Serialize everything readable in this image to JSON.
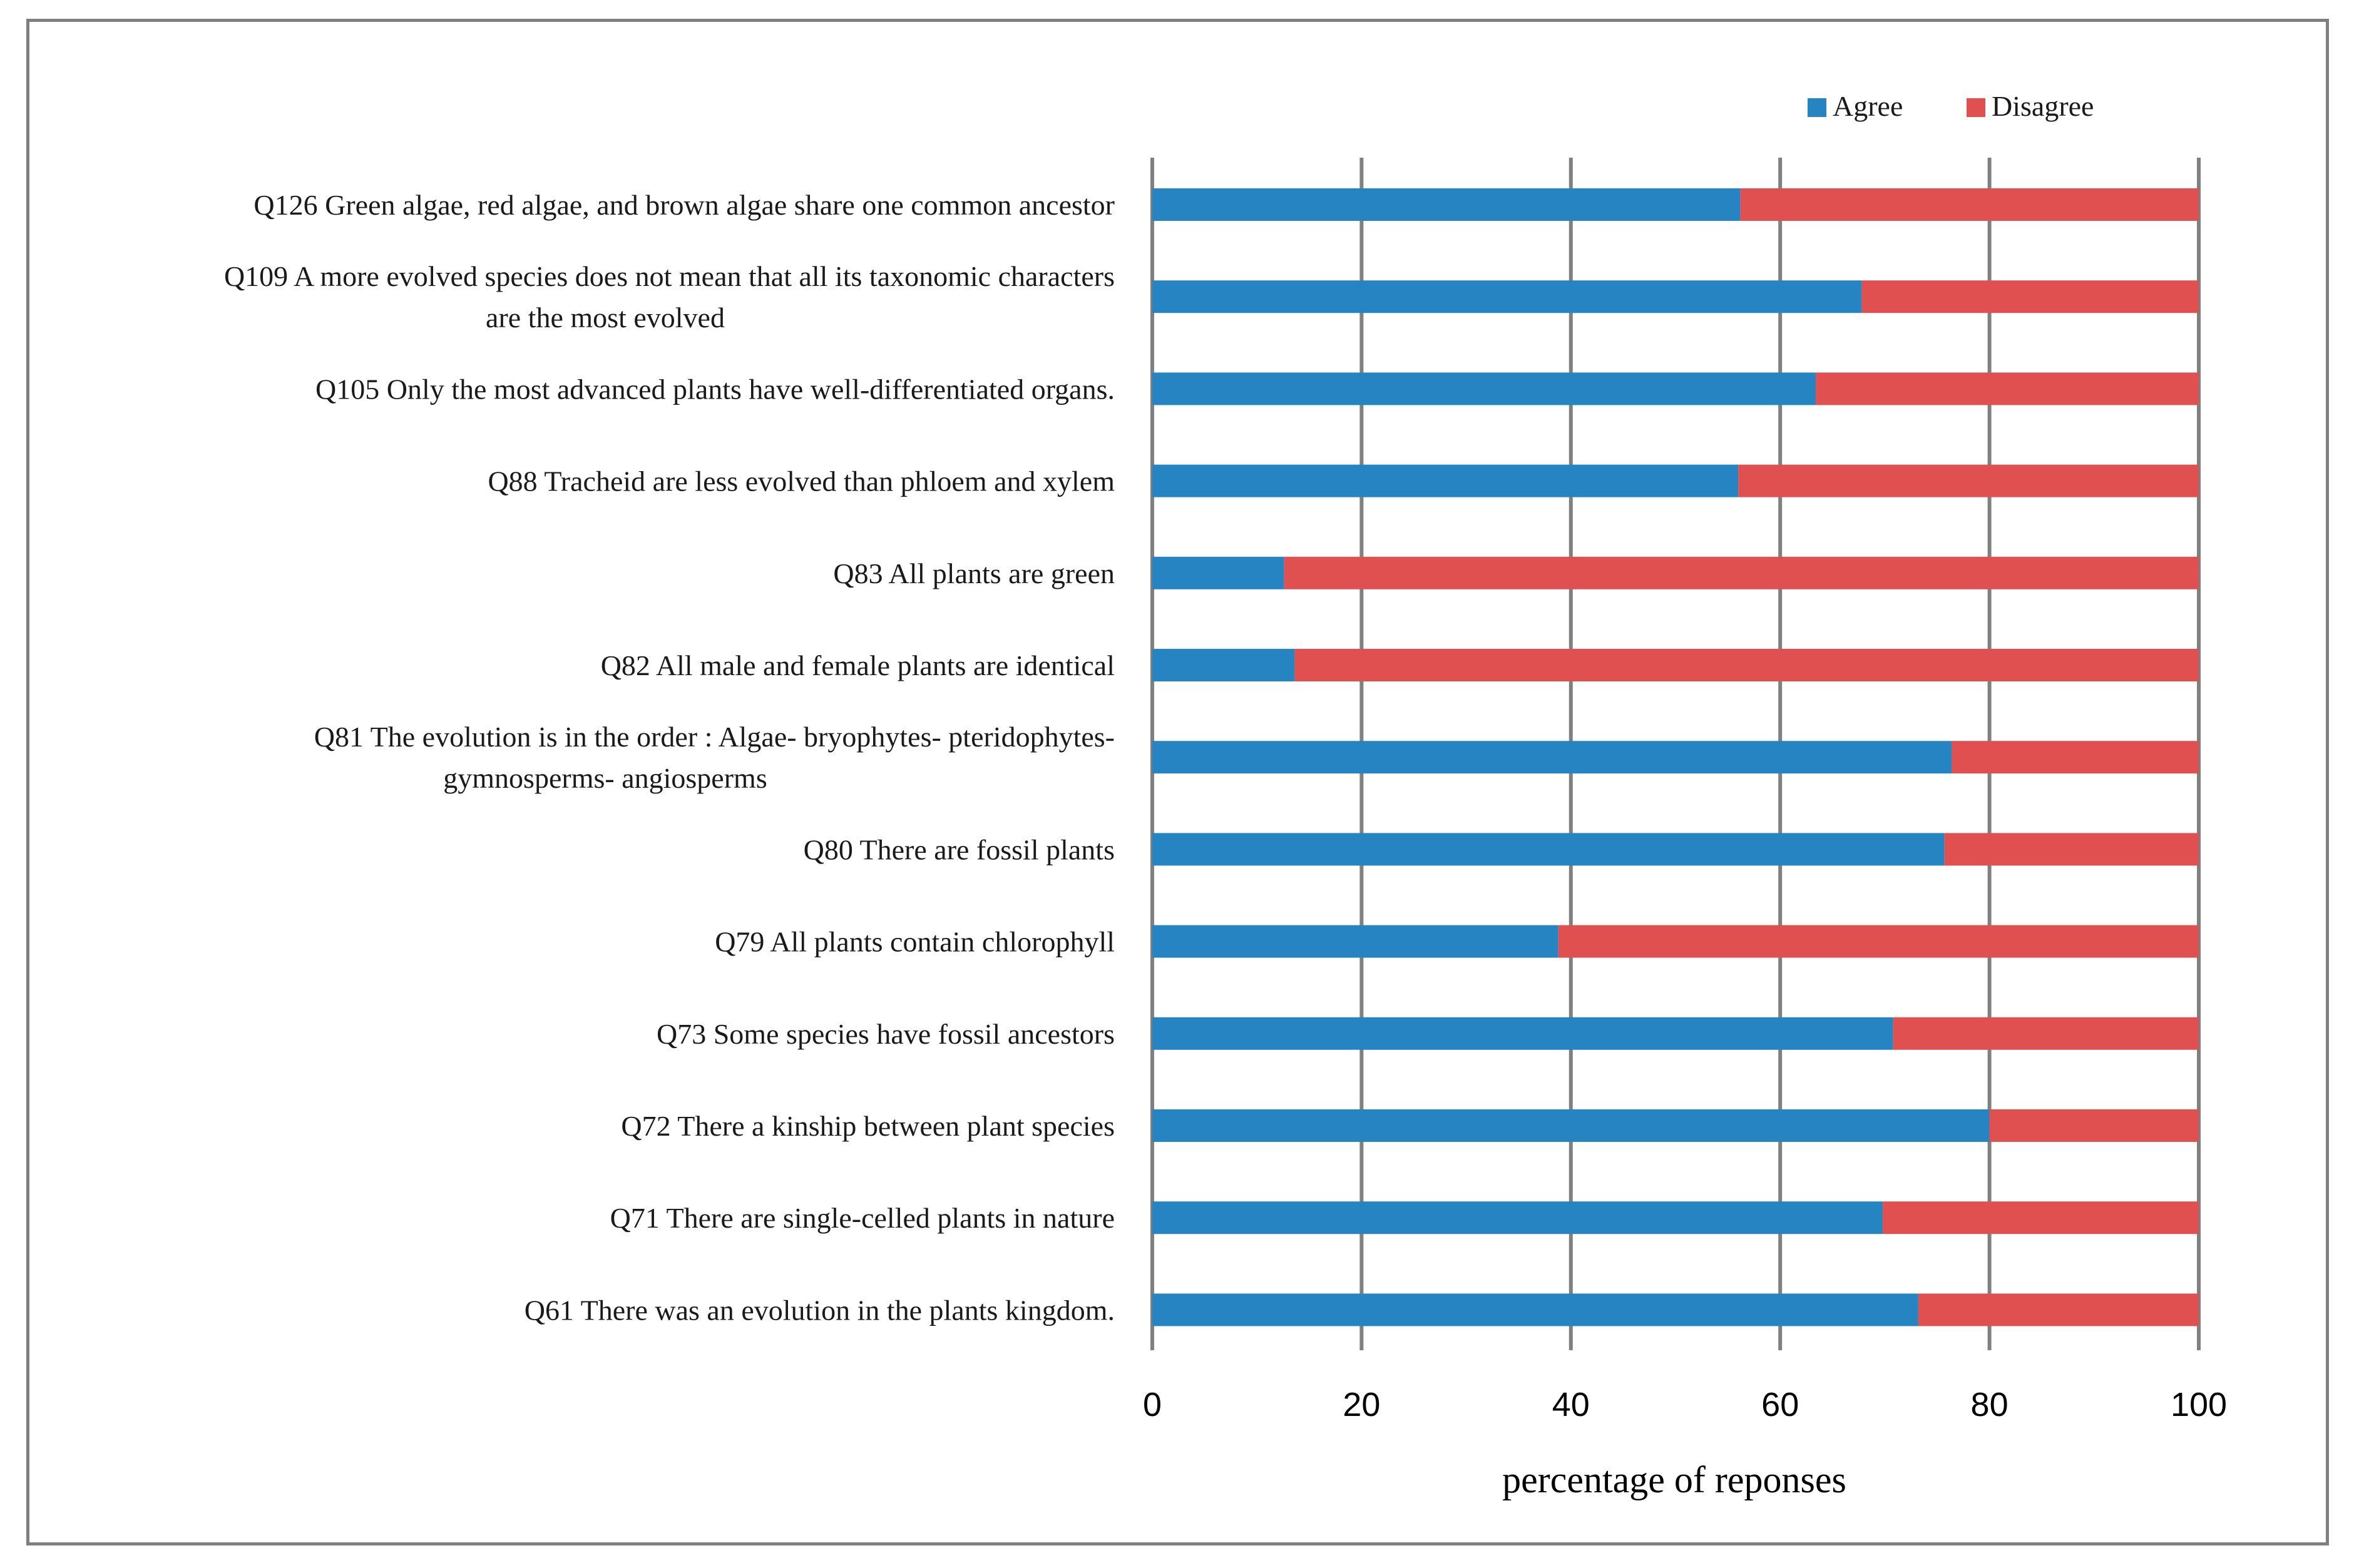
{
  "chart_data": {
    "type": "bar",
    "orientation": "horizontal",
    "stacked": true,
    "title": "",
    "xlabel": "percentage of reponses",
    "ylabel": "",
    "xlim": [
      0,
      100
    ],
    "x_ticks": [
      0,
      20,
      40,
      60,
      80,
      100
    ],
    "grid": "vertical",
    "legend_position": "top-right",
    "categories": [
      [
        "Q126 Green algae, red algae, and brown algae share one common ancestor"
      ],
      [
        "Q109 A more evolved species does not mean that all its taxonomic characters",
        "are the most evolved"
      ],
      [
        "Q105 Only the most advanced plants have well-differentiated organs."
      ],
      [
        "Q88 Tracheid are less evolved than phloem and xylem"
      ],
      [
        "Q83 All plants are green"
      ],
      [
        "Q82 All male and female plants are identical"
      ],
      [
        "Q81 The evolution is in the order : Algae- bryophytes- pteridophytes-",
        "gymnosperms- angiosperms"
      ],
      [
        "Q80 There are fossil plants"
      ],
      [
        "Q79 All plants contain chlorophyll"
      ],
      [
        "Q73 Some species have fossil ancestors"
      ],
      [
        "Q72 There a kinship between plant species"
      ],
      [
        "Q71 There are single-celled plants in nature"
      ],
      [
        "Q61 There was an evolution in the plants kingdom."
      ]
    ],
    "series": [
      {
        "name": "Agree",
        "color": "#2784c3",
        "values": [
          56.2,
          67.8,
          63.4,
          56.0,
          12.6,
          13.6,
          76.4,
          75.7,
          38.8,
          70.8,
          80.0,
          69.8,
          73.2
        ]
      },
      {
        "name": "Disagree",
        "color": "#e05050",
        "values": [
          43.8,
          32.2,
          36.6,
          44.0,
          87.4,
          86.4,
          23.6,
          24.3,
          61.2,
          29.2,
          20.0,
          30.2,
          26.8
        ]
      }
    ]
  }
}
